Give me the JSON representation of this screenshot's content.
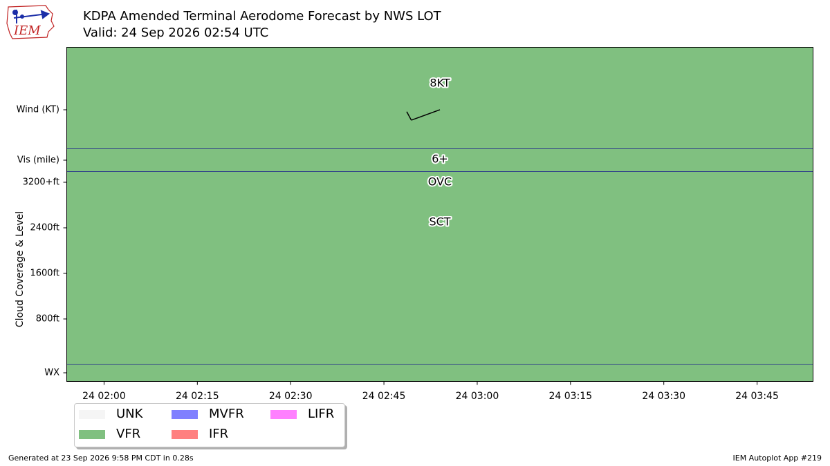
{
  "logo": {
    "text": "IEM",
    "name": "iem-logo"
  },
  "header": {
    "title": "KDPA Amended Terminal Aerodome Forecast by NWS LOT",
    "valid": "Valid: 24 Sep 2026 02:54 UTC"
  },
  "chart_data": {
    "type": "timeline",
    "background_category": "VFR",
    "rows": {
      "wind": "Wind (KT)",
      "vis": "Vis (mile)",
      "wx": "WX",
      "cloud_axis_label": "Cloud Coverage & Level"
    },
    "cloud_ticks": [
      "3200+ft",
      "2400ft",
      "1600ft",
      "800ft"
    ],
    "cloud_tick_values": [
      3200,
      2400,
      1600,
      800
    ],
    "cloud_ylim": [
      0,
      3200
    ],
    "x_ticks": [
      "24 02:00",
      "24 02:15",
      "24 02:30",
      "24 02:45",
      "24 03:00",
      "24 03:15",
      "24 03:30",
      "24 03:45"
    ],
    "x_tick_minutes": [
      120,
      135,
      150,
      165,
      180,
      195,
      210,
      225
    ],
    "xlim_minutes": [
      114,
      234
    ],
    "forecast": {
      "time_minutes": 174,
      "wind_speed_label": "8KT",
      "wind_speed_kt": 8,
      "wind_from_deg": 250,
      "visibility_label": "6+",
      "clouds": [
        {
          "cover": "OVC",
          "level_ft": 3200
        },
        {
          "cover": "SCT",
          "level_ft": 2500
        }
      ]
    },
    "legend": [
      {
        "label": "UNK",
        "color": "#f5f5f5"
      },
      {
        "label": "MVFR",
        "color": "#8080ff"
      },
      {
        "label": "LIFR",
        "color": "#ff80ff"
      },
      {
        "label": "VFR",
        "color": "#80c080"
      },
      {
        "label": "IFR",
        "color": "#ff8080"
      }
    ]
  },
  "footer": {
    "generated": "Generated at 23 Sep 2026 9:58 PM CDT in 0.28s",
    "app": "IEM Autoplot App #219"
  }
}
